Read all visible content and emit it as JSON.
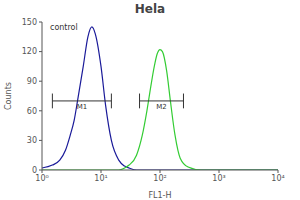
{
  "chart_data": {
    "type": "line",
    "title": "Hela",
    "x_label": "FL1-H",
    "y_label": "Counts",
    "log": "x",
    "grid": false,
    "xlim": [
      1,
      10000
    ],
    "xticks": [
      {
        "value": 1,
        "label": "10⁰"
      },
      {
        "value": 10,
        "label": "10¹"
      },
      {
        "value": 100,
        "label": "10²"
      },
      {
        "value": 1000,
        "label": "10³"
      },
      {
        "value": 10000,
        "label": "10⁴"
      }
    ],
    "ylim": [
      0,
      150
    ],
    "yticks": [
      0,
      30,
      60,
      90,
      120,
      150
    ],
    "x": [
      1,
      1.5,
      2,
      2.5,
      3,
      3.5,
      4,
      5,
      6,
      7,
      8,
      10,
      12,
      15,
      20,
      25,
      30,
      40,
      50,
      60,
      70,
      80,
      90,
      100,
      110,
      130,
      150,
      180,
      220,
      300,
      500,
      1000,
      10000
    ],
    "series": [
      {
        "name": "control",
        "color": "#1a1a99",
        "values": [
          2,
          5,
          10,
          20,
          35,
          50,
          70,
          105,
          135,
          145,
          138,
          105,
          65,
          30,
          10,
          4,
          2,
          0,
          0,
          0,
          0,
          0,
          0,
          0,
          0,
          0,
          0,
          0,
          0,
          0,
          0,
          0,
          0
        ]
      },
      {
        "color": "#33cc33",
        "values": [
          0,
          0,
          0,
          0,
          0,
          0,
          0,
          0,
          0,
          0,
          0,
          0,
          0,
          0,
          0,
          2,
          5,
          15,
          35,
          60,
          85,
          105,
          118,
          122,
          120,
          100,
          70,
          35,
          12,
          3,
          0,
          0,
          0
        ]
      }
    ],
    "gates": [
      {
        "label": "M1",
        "x": [
          1.5,
          15
        ],
        "y": 70
      },
      {
        "label": "M2",
        "x": [
          45,
          250
        ],
        "y": 70
      }
    ]
  }
}
